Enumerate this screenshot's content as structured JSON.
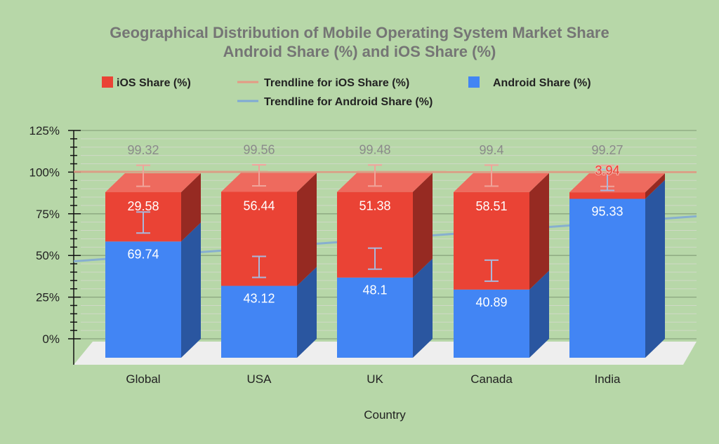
{
  "chart_data": {
    "type": "bar",
    "stacked": true,
    "three_d": true,
    "title": "Geographical Distribution of Mobile Operating System Market Share",
    "subtitle": "Android Share (%) and iOS Share (%)",
    "xlabel": "Country",
    "ylabel": "",
    "ylim": [
      0,
      125
    ],
    "yticks": [
      "0%",
      "25%",
      "50%",
      "75%",
      "100%",
      "125%"
    ],
    "grid": true,
    "legend_position": "top",
    "categories": [
      "Global",
      "USA",
      "UK",
      "Canada",
      "India"
    ],
    "series": [
      {
        "name": "Android Share (%)",
        "values": [
          69.74,
          43.12,
          48.1,
          40.89,
          95.33
        ],
        "labels": [
          "69.74",
          "43.12",
          "48.1",
          "40.89",
          "95.33"
        ],
        "color": "#4285f4",
        "side_color": "#2a56a0"
      },
      {
        "name": "iOS Share (%)",
        "values": [
          29.58,
          56.44,
          51.38,
          58.51,
          3.94
        ],
        "labels": [
          "29.58",
          "56.44",
          "51.38",
          "58.51",
          "3.94"
        ],
        "color": "#ea4335",
        "side_color": "#962a22",
        "top_color": "#ee6a5e"
      }
    ],
    "totals": [
      "99.32",
      "99.56",
      "99.48",
      "99.4",
      "99.27"
    ],
    "totals_values": [
      99.32,
      99.56,
      99.48,
      99.4,
      99.27
    ],
    "trendlines": [
      {
        "name": "Trendline for iOS Share (%)",
        "color": "#e59a85",
        "start": 100.2,
        "end": 100.0
      },
      {
        "name": "Trendline for Android Share (%)",
        "color": "#7fa9d6",
        "start": 46.5,
        "end": 73.5
      }
    ],
    "error_bars": true,
    "legend": [
      {
        "label": "iOS Share (%)",
        "kind": "box",
        "color": "#ea4335"
      },
      {
        "label": "Trendline for iOS Share (%)",
        "kind": "line",
        "color": "#e59a85"
      },
      {
        "label": "Android Share (%)",
        "kind": "box",
        "color": "#4285f4"
      },
      {
        "label": "Trendline for Android Share (%)",
        "kind": "line",
        "color": "#7fa9d6"
      }
    ]
  }
}
